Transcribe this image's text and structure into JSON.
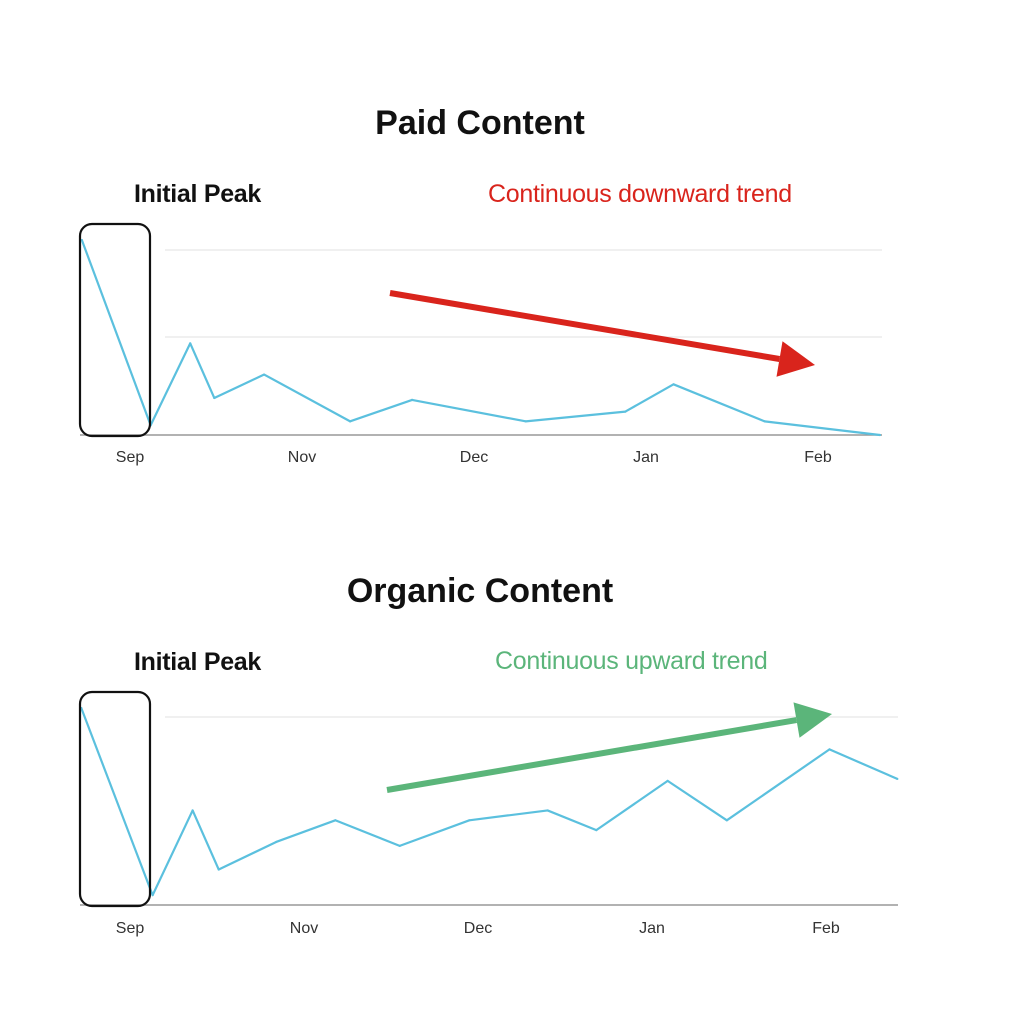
{
  "colors": {
    "line": "#5bc0de",
    "down": "#d9241c",
    "up": "#5bb57a",
    "axis": "#999999",
    "box": "#111111"
  },
  "chart_data": [
    {
      "type": "line",
      "title": "Paid Content",
      "peak_label": "Initial Peak",
      "trend_label": "Continuous downward trend",
      "trend_direction": "down",
      "tick_labels": [
        "Sep",
        "Nov",
        "Dec",
        "Jan",
        "Feb"
      ],
      "xlim": [
        -0.3,
        4.4
      ],
      "ylim": [
        0,
        100
      ],
      "grid": true,
      "x": [
        -0.28,
        0.12,
        0.35,
        0.49,
        0.78,
        1.28,
        1.64,
        2.3,
        2.88,
        3.16,
        3.69,
        4.36
      ],
      "y": [
        100,
        5,
        47,
        19,
        31,
        7,
        18,
        7,
        12,
        26,
        7,
        0
      ]
    },
    {
      "type": "line",
      "title": "Organic Content",
      "peak_label": "Initial Peak",
      "trend_label": "Continuous upward trend",
      "trend_direction": "up",
      "tick_labels": [
        "Sep",
        "Nov",
        "Dec",
        "Jan",
        "Feb"
      ],
      "xlim": [
        -0.3,
        4.45
      ],
      "ylim": [
        0,
        100
      ],
      "grid": true,
      "x": [
        -0.28,
        0.13,
        0.36,
        0.51,
        0.84,
        1.18,
        1.55,
        1.95,
        2.4,
        2.68,
        3.09,
        3.43,
        4.02,
        4.41
      ],
      "y": [
        100,
        5,
        48,
        18,
        32,
        43,
        30,
        43,
        48,
        38,
        63,
        43,
        79,
        64
      ]
    }
  ]
}
